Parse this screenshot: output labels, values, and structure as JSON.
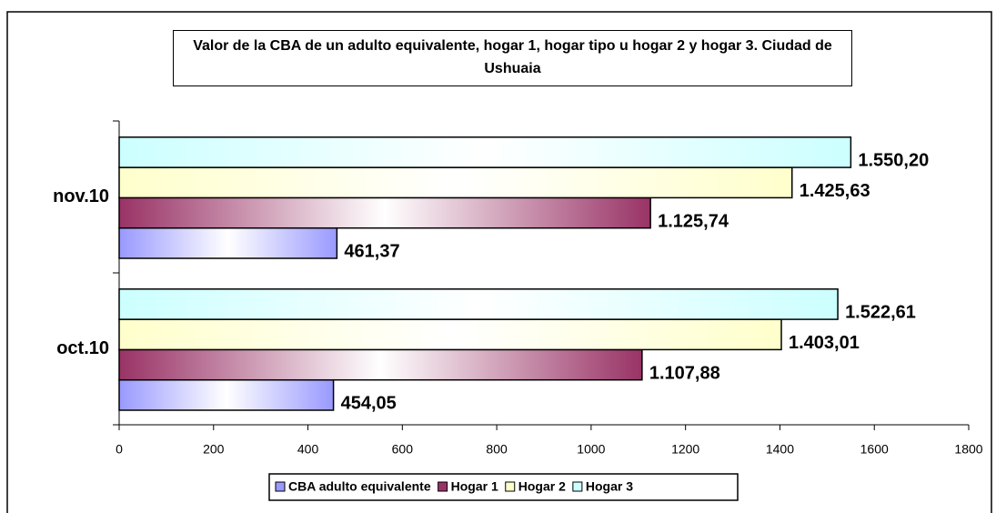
{
  "chart_data": {
    "type": "barh",
    "title": "Valor de la CBA de un adulto equivalente, hogar 1, hogar tipo u hogar 2 y hogar 3. Ciudad de Ushuaia",
    "categories": [
      "oct.10",
      "nov.10"
    ],
    "series": [
      {
        "name": "CBA adulto equivalente",
        "color": "#9999ff",
        "values": [
          454.05,
          461.37
        ],
        "value_labels": [
          "454,05",
          "461,37"
        ]
      },
      {
        "name": "Hogar 1",
        "color": "#993366",
        "values": [
          1107.88,
          1125.74
        ],
        "value_labels": [
          "1.107,88",
          "1.125,74"
        ]
      },
      {
        "name": "Hogar 2",
        "color": "#ffffcc",
        "values": [
          1403.01,
          1425.63
        ],
        "value_labels": [
          "1.403,01",
          "1.425,63"
        ]
      },
      {
        "name": "Hogar 3",
        "color": "#ccffff",
        "values": [
          1522.61,
          1550.2
        ],
        "value_labels": [
          "1.522,61",
          "1.550,20"
        ]
      }
    ],
    "xlim": [
      0,
      1800
    ],
    "xticks": [
      0,
      200,
      400,
      600,
      800,
      1000,
      1200,
      1400,
      1600,
      1800
    ],
    "grid": false,
    "legend": "bottom"
  }
}
